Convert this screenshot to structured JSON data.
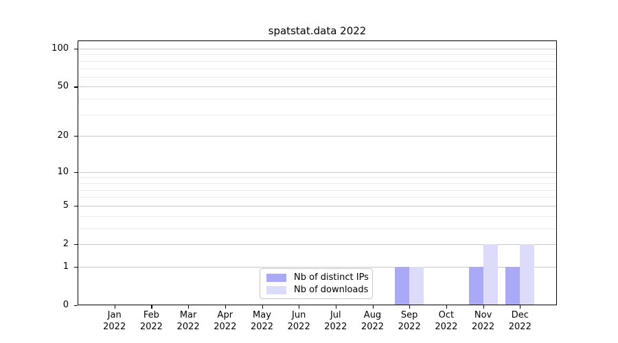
{
  "chart_data": {
    "type": "bar",
    "title": "spatstat.data 2022",
    "categories": [
      "Jan",
      "Feb",
      "Mar",
      "Apr",
      "May",
      "Jun",
      "Jul",
      "Aug",
      "Sep",
      "Oct",
      "Nov",
      "Dec"
    ],
    "category_year": "2022",
    "series": [
      {
        "name": "Nb of distinct IPs",
        "color": "#a9a9f7",
        "values": [
          0,
          0,
          0,
          0,
          0,
          0,
          0,
          0,
          1,
          0,
          1,
          1
        ]
      },
      {
        "name": "Nb of downloads",
        "color": "#dcdbf9",
        "values": [
          0,
          0,
          0,
          0,
          0,
          0,
          0,
          0,
          1,
          0,
          2,
          2
        ]
      }
    ],
    "yscale": "log1p",
    "ylabel": "",
    "xlabel": "",
    "y_major_ticks": [
      0,
      1,
      2,
      5,
      10,
      20,
      50,
      100
    ],
    "y_minor_gridlines": [
      3,
      4,
      6,
      7,
      8,
      9,
      30,
      40,
      60,
      70,
      80,
      90
    ],
    "ylim": [
      0,
      116
    ],
    "grid": "horizontal-major-and-minor",
    "legend_position": "inside-bottom-center",
    "colors": {
      "major_grid": "#c8c8c8",
      "minor_grid": "#ececec",
      "axis": "#000000"
    }
  }
}
